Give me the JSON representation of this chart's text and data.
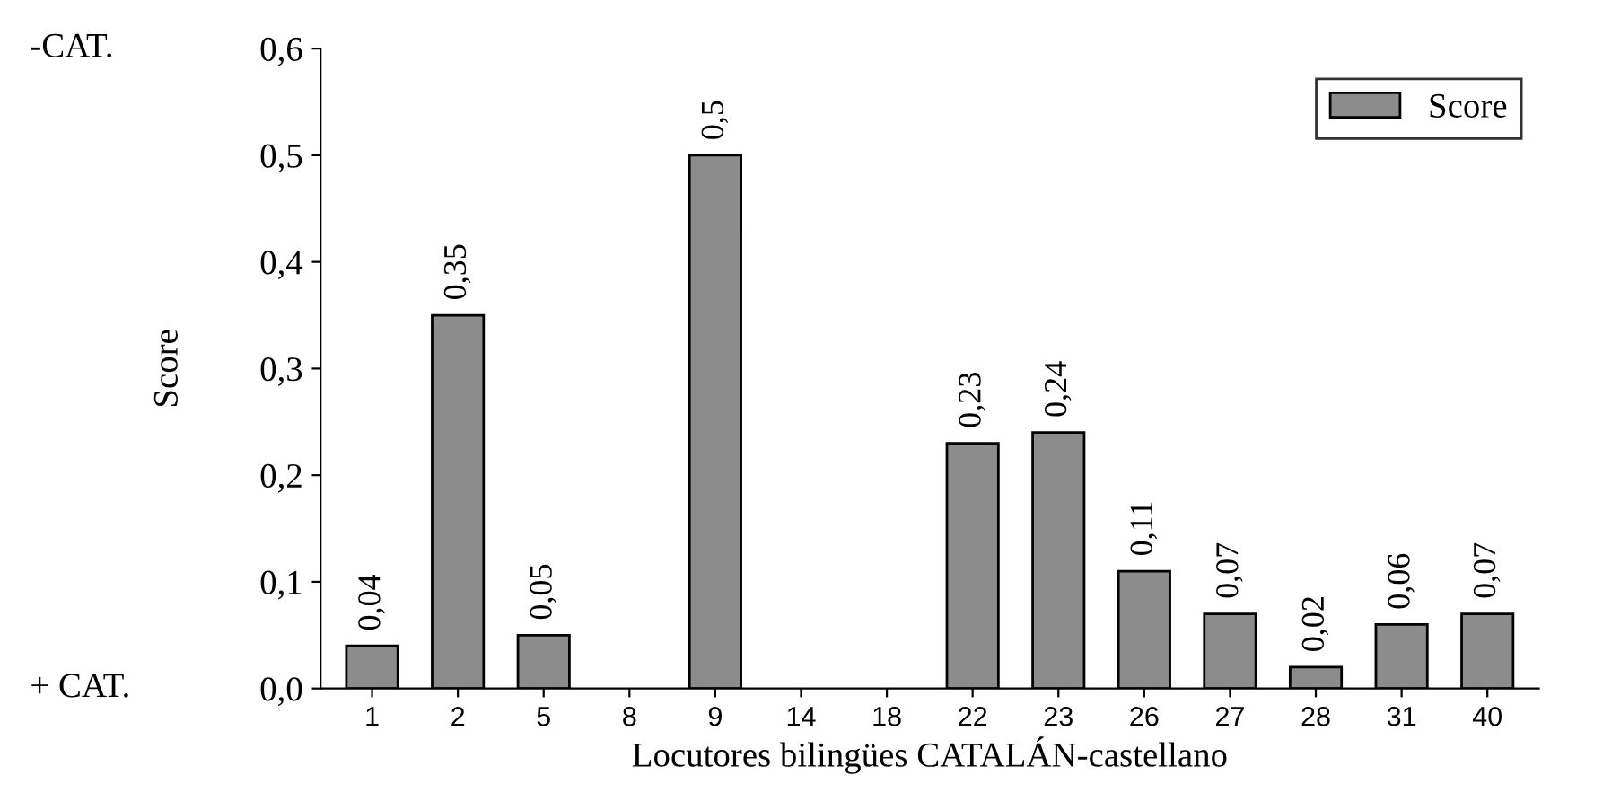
{
  "chart_data": {
    "type": "bar",
    "ylabel": "Score",
    "xlabel": "Locutores bilingües CATALÁN-castellano",
    "categories": [
      "1",
      "2",
      "5",
      "8",
      "9",
      "14",
      "18",
      "22",
      "23",
      "26",
      "27",
      "28",
      "31",
      "40"
    ],
    "series": [
      {
        "name": "Score",
        "color": "#8c8c8c",
        "values": [
          0.04,
          0.35,
          0.05,
          null,
          0.5,
          null,
          null,
          0.23,
          0.24,
          0.11,
          0.07,
          0.02,
          0.06,
          0.07
        ],
        "value_labels": [
          "0,04",
          "0,35",
          "0,05",
          null,
          "0,5",
          null,
          null,
          "0,23",
          "0,24",
          "0,11",
          "0,07",
          "0,02",
          "0,06",
          "0,07"
        ]
      }
    ],
    "ylim": [
      0,
      0.6
    ],
    "yticks": [
      {
        "value": 0,
        "label": "0,0"
      },
      {
        "value": 0.1,
        "label": "0,1"
      },
      {
        "value": 0.2,
        "label": "0,2"
      },
      {
        "value": 0.3,
        "label": "0,3"
      },
      {
        "value": 0.4,
        "label": "0,4"
      },
      {
        "value": 0.5,
        "label": "0,5"
      },
      {
        "value": 0.6,
        "label": "0,6"
      }
    ],
    "annotations": [
      "-CAT.",
      "+ CAT."
    ],
    "legend": "top right",
    "grid": false
  }
}
